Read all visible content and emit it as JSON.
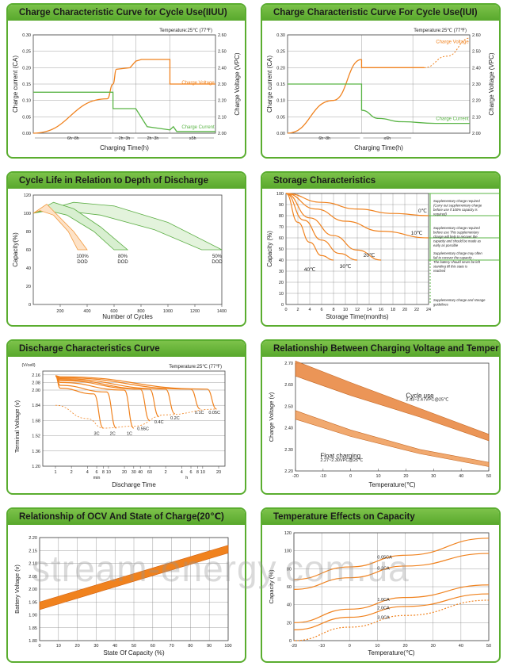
{
  "watermark": "stream-energy.com.ua",
  "colors": {
    "orange": "#f0821e",
    "green": "#59b445",
    "grid": "#555555",
    "accent": "#5aad2f"
  },
  "panels": [
    {
      "title": "Charge Characteristic Curve for Cycle Use(IIUU)"
    },
    {
      "title": "Charge Characteristic Curve For Cycle Use(IUI)"
    },
    {
      "title": "Cycle Life in Relation to Depth of Discharge"
    },
    {
      "title": "Storage Characteristics"
    },
    {
      "title": "Discharge Characteristics Curve"
    },
    {
      "title": "Relationship Between Charging Voltage and Temperature"
    },
    {
      "title": "Relationship of OCV And State of Charge(20℃)"
    },
    {
      "title": "Temperature Effects on Capacity"
    }
  ],
  "chart_data": [
    {
      "type": "line",
      "title": "Charge Characteristic Curve for Cycle Use(IIUU)",
      "subtitle": "Temperature:25℃ (77℉)",
      "xlabel": "Charging Time(h)",
      "ylabel": "Charge current (CA)",
      "y2label": "Charge Voltage (VPC)",
      "ylim": [
        0,
        0.3
      ],
      "y2lim": [
        2.0,
        2.6
      ],
      "yticks": [
        "0.00",
        "0.05",
        "0.10",
        "0.15",
        "0.20",
        "0.25",
        "0.30"
      ],
      "y2ticks": [
        "2.00",
        "2.10",
        "2.20",
        "2.30",
        "2.40",
        "2.50",
        "2.60"
      ],
      "phase_labels": [
        "6h~8h",
        "2h~3h",
        "2h~3h",
        "≥5h"
      ],
      "series": [
        {
          "name": "Charge Voltage",
          "x": [
            0,
            6.5,
            7,
            7.3,
            8.5,
            9,
            9.5,
            12,
            12,
            16
          ],
          "y": [
            2.0,
            2.21,
            2.3,
            2.39,
            2.4,
            2.44,
            2.45,
            2.45,
            2.3,
            2.3
          ]
        },
        {
          "name": "Charge Current",
          "x": [
            0,
            7,
            7,
            9,
            9,
            10,
            12,
            12.3,
            12.6,
            16
          ],
          "y": [
            0.125,
            0.125,
            0.075,
            0.075,
            0.075,
            0.02,
            0.01,
            0.02,
            0.005,
            0.005
          ]
        }
      ]
    },
    {
      "type": "line",
      "title": "Charge Characteristic Curve For Cycle Use(IUI)",
      "subtitle": "Temperature:25℃ (77℉)",
      "xlabel": "Charging Time(h)",
      "ylabel": "Charge current (CA)",
      "y2label": "Charge Voltage (VPC)",
      "ylim": [
        0,
        0.3
      ],
      "y2lim": [
        2.0,
        2.6
      ],
      "yticks": [
        "0.00",
        "0.05",
        "0.10",
        "0.15",
        "0.20",
        "0.25",
        "0.30"
      ],
      "y2ticks": [
        "2.00",
        "2.10",
        "2.20",
        "2.30",
        "2.40",
        "2.50",
        "2.60"
      ],
      "phase_labels": [
        "6h~8h",
        "≤6h"
      ],
      "series": [
        {
          "name": "Charge Voltage",
          "x": [
            0,
            4,
            6.5,
            6.5,
            10,
            12,
            14,
            16
          ],
          "y": [
            2.0,
            2.2,
            2.45,
            2.4,
            2.4,
            2.42,
            2.5,
            2.58
          ]
        },
        {
          "name": "Charge Current",
          "x": [
            0,
            6.5,
            6.5,
            8,
            10,
            13,
            16
          ],
          "y": [
            0.15,
            0.15,
            0.07,
            0.045,
            0.035,
            0.03,
            0.03
          ]
        }
      ]
    },
    {
      "type": "area",
      "title": "Cycle Life in Relation to Depth of Discharge",
      "xlabel": "Number of Cycles",
      "ylabel": "Capacity(%)",
      "xlim": [
        0,
        1400
      ],
      "ylim": [
        0,
        120
      ],
      "xticks": [
        "200",
        "400",
        "600",
        "800",
        "1000",
        "1200",
        "1400"
      ],
      "yticks": [
        "0",
        "20",
        "40",
        "60",
        "80",
        "100",
        "120"
      ],
      "series": [
        {
          "name": "100% DOD",
          "x": [
            0,
            100,
            200,
            300,
            400
          ],
          "y": [
            100,
            110,
            95,
            80,
            60
          ]
        },
        {
          "name": "80% DOD",
          "x": [
            0,
            150,
            300,
            500,
            700
          ],
          "y": [
            100,
            112,
            105,
            85,
            60
          ]
        },
        {
          "name": "50% DOD",
          "x": [
            0,
            300,
            600,
            1000,
            1400
          ],
          "y": [
            100,
            112,
            108,
            90,
            60
          ]
        }
      ]
    },
    {
      "type": "line",
      "title": "Storage Characteristics",
      "xlabel": "Storage  Time(months)",
      "ylabel": "Capacity  (%)",
      "xlim": [
        0,
        24
      ],
      "ylim": [
        0,
        100
      ],
      "xticks": [
        "0",
        "2",
        "4",
        "6",
        "8",
        "10",
        "12",
        "14",
        "16",
        "18",
        "20",
        "22",
        "24"
      ],
      "yticks": [
        "0",
        "10",
        "20",
        "30",
        "40",
        "50",
        "60",
        "70",
        "80",
        "90",
        "100"
      ],
      "series": [
        {
          "name": "0℃",
          "x": [
            0,
            6,
            12,
            18,
            24
          ],
          "y": [
            100,
            92,
            86,
            82,
            80
          ]
        },
        {
          "name": "10℃",
          "x": [
            0,
            5,
            10,
            16,
            24
          ],
          "y": [
            100,
            86,
            75,
            66,
            60
          ]
        },
        {
          "name": "20℃",
          "x": [
            0,
            4,
            8,
            12,
            16
          ],
          "y": [
            100,
            78,
            62,
            49,
            40
          ]
        },
        {
          "name": "30℃",
          "x": [
            0,
            3,
            6,
            9,
            12
          ],
          "y": [
            100,
            76,
            58,
            46,
            40
          ]
        },
        {
          "name": "40℃",
          "x": [
            0,
            2,
            4,
            6,
            8
          ],
          "y": [
            100,
            74,
            56,
            44,
            40
          ]
        }
      ],
      "notes": [
        "Supplementary charge required (Carry out supplementary charge before use if 100% capacity is required)",
        "Supplementary charge required before use This supplementary charge will help to recover the capacity and should be made  as early as possible",
        "Supplementary charge may often fail to recover the capacity . The battery should never be left standing till this state is reached",
        "Supplementary charge and storage guidelines"
      ]
    },
    {
      "type": "line",
      "title": "Discharge Characteristics Curve",
      "subtitle": "Temperature:25℃ (77℉)",
      "xlabel": "Discharge  Time",
      "ylabel": "Terminal Voltage  (v)",
      "yunit": "(V/cell)",
      "ylim": [
        1.2,
        2.2
      ],
      "yticks": [
        "1.20",
        "1.36",
        "1.52",
        "1.68",
        "1.84",
        "2.00",
        "2.08",
        "2.16"
      ],
      "xticks_min": [
        "1",
        "2",
        "4",
        "6",
        "8",
        "10",
        "20",
        "30",
        "40",
        "60"
      ],
      "xticks_h": [
        "2",
        "4",
        "6",
        "8",
        "10",
        "20"
      ],
      "xunit_min": "min",
      "xunit_h": "h",
      "series": [
        {
          "name": "3C",
          "end_v": 1.6
        },
        {
          "name": "2C",
          "end_v": 1.6
        },
        {
          "name": "1C",
          "end_v": 1.6
        },
        {
          "name": "0.55C",
          "end_v": 1.68
        },
        {
          "name": "0.4C",
          "end_v": 1.72
        },
        {
          "name": "0.2C",
          "end_v": 1.75
        },
        {
          "name": "0.1C",
          "end_v": 1.8
        },
        {
          "name": "0.05C",
          "end_v": 1.8
        }
      ]
    },
    {
      "type": "area",
      "title": "Relationship Between Charging Voltage and Temperature",
      "xlabel": "Temperature(℃)",
      "ylabel": "Charge Voltage (v)",
      "xlim": [
        -20,
        50
      ],
      "ylim": [
        2.2,
        2.7
      ],
      "xticks": [
        "-20",
        "-10",
        "0",
        "10",
        "20",
        "30",
        "40",
        "50"
      ],
      "yticks": [
        "2.20",
        "2.30",
        "2.40",
        "2.50",
        "2.60",
        "2.70"
      ],
      "series": [
        {
          "name": "Cycle use",
          "note": "2.43~2.47VPC@25℃",
          "x": [
            -20,
            0,
            25,
            50
          ],
          "y_low": [
            2.64,
            2.55,
            2.45,
            2.34
          ],
          "y_high": [
            2.71,
            2.61,
            2.49,
            2.37
          ]
        },
        {
          "name": "Float charging",
          "note": "2.27~2.30VPC@25℃",
          "x": [
            -20,
            0,
            25,
            50
          ],
          "y_low": [
            2.44,
            2.36,
            2.28,
            2.22
          ],
          "y_high": [
            2.48,
            2.39,
            2.3,
            2.24
          ]
        }
      ]
    },
    {
      "type": "area",
      "title": "Relationship of OCV And State of Charge(20℃)",
      "xlabel": "State Of Capacity  (%)",
      "ylabel": "Battery Voltage (v)",
      "xlim": [
        0,
        100
      ],
      "ylim": [
        1.8,
        2.2
      ],
      "xticks": [
        "0",
        "10",
        "20",
        "30",
        "40",
        "50",
        "60",
        "70",
        "80",
        "90",
        "100"
      ],
      "yticks": [
        "1.80",
        "1.85",
        "1.90",
        "1.95",
        "2.00",
        "2.05",
        "2.10",
        "2.15",
        "2.20"
      ],
      "series": [
        {
          "name": "OCV",
          "x": [
            0,
            100
          ],
          "y_low": [
            1.92,
            2.14
          ],
          "y_high": [
            1.95,
            2.17
          ]
        }
      ]
    },
    {
      "type": "line",
      "title": "Temperature Effects on Capacity",
      "xlabel": "Temperature(℃)",
      "ylabel": "Capacity (%)",
      "xlim": [
        -20,
        50
      ],
      "ylim": [
        0,
        120
      ],
      "xticks": [
        "-20",
        "-10",
        "0",
        "10",
        "20",
        "30",
        "40",
        "50"
      ],
      "yticks": [
        "0",
        "20",
        "40",
        "60",
        "80",
        "100",
        "120"
      ],
      "series": [
        {
          "name": "0.05CA",
          "x": [
            -20,
            0,
            20,
            50
          ],
          "y": [
            68,
            82,
            95,
            114
          ]
        },
        {
          "name": "0.2CA",
          "x": [
            -20,
            0,
            20,
            50
          ],
          "y": [
            57,
            70,
            83,
            97
          ]
        },
        {
          "name": "1.0CA",
          "x": [
            -20,
            0,
            20,
            50
          ],
          "y": [
            20,
            35,
            48,
            62
          ]
        },
        {
          "name": "2.0CA",
          "x": [
            -20,
            0,
            20,
            50
          ],
          "y": [
            12,
            26,
            38,
            52
          ]
        },
        {
          "name": "3.0CA",
          "x": [
            -20,
            0,
            20,
            50
          ],
          "y": [
            0,
            15,
            28,
            45
          ]
        }
      ]
    }
  ]
}
